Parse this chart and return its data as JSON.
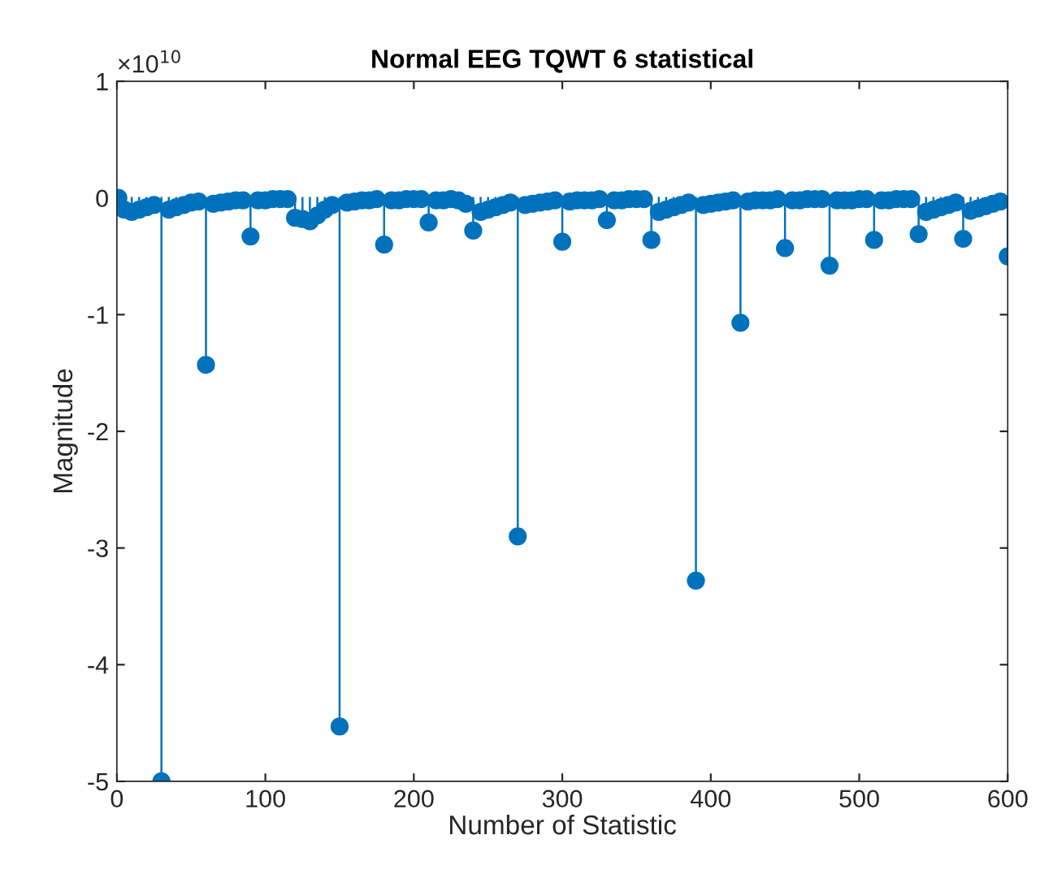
{
  "chart_data": {
    "type": "lollipop",
    "title": "Normal EEG TQWT 6 statistical",
    "xlabel": "Number of Statistic",
    "ylabel": "Magnitude",
    "annotations": [
      "×10$^{10}$"
    ],
    "x": [
      1,
      5,
      10,
      15,
      20,
      25,
      30,
      35,
      40,
      45,
      50,
      55,
      60,
      65,
      70,
      75,
      80,
      85,
      90,
      95,
      100,
      105,
      110,
      115,
      120,
      125,
      130,
      135,
      140,
      145,
      150,
      155,
      160,
      165,
      170,
      175,
      180,
      185,
      190,
      195,
      200,
      205,
      210,
      215,
      220,
      225,
      230,
      235,
      240,
      245,
      250,
      255,
      260,
      265,
      270,
      275,
      280,
      285,
      290,
      295,
      300,
      305,
      310,
      315,
      320,
      325,
      330,
      335,
      340,
      345,
      350,
      355,
      360,
      365,
      370,
      375,
      380,
      385,
      390,
      395,
      400,
      405,
      410,
      415,
      420,
      425,
      430,
      435,
      440,
      445,
      450,
      455,
      460,
      465,
      470,
      475,
      480,
      485,
      490,
      495,
      500,
      505,
      510,
      515,
      520,
      525,
      530,
      535,
      540,
      545,
      550,
      555,
      560,
      565,
      570,
      575,
      580,
      585,
      590,
      595,
      600
    ],
    "values": [
      0,
      -0.1,
      -0.12,
      -0.1,
      -0.08,
      -0.06,
      -5.0,
      -0.1,
      -0.08,
      -0.06,
      -0.04,
      -0.03,
      -1.43,
      -0.05,
      -0.04,
      -0.03,
      -0.02,
      -0.02,
      -0.33,
      -0.02,
      -0.02,
      -0.01,
      -0.01,
      -0.01,
      -0.17,
      -0.18,
      -0.2,
      -0.15,
      -0.1,
      -0.06,
      -4.53,
      -0.04,
      -0.03,
      -0.02,
      -0.02,
      -0.01,
      -0.4,
      -0.02,
      -0.02,
      -0.01,
      -0.01,
      -0.01,
      -0.21,
      -0.02,
      -0.02,
      -0.01,
      -0.02,
      -0.05,
      -0.28,
      -0.12,
      -0.1,
      -0.08,
      -0.06,
      -0.04,
      -2.9,
      -0.06,
      -0.05,
      -0.04,
      -0.03,
      -0.02,
      -0.375,
      -0.03,
      -0.02,
      -0.02,
      -0.02,
      -0.01,
      -0.19,
      -0.02,
      -0.02,
      -0.01,
      -0.01,
      -0.01,
      -0.36,
      -0.12,
      -0.1,
      -0.08,
      -0.06,
      -0.04,
      -3.28,
      -0.06,
      -0.05,
      -0.04,
      -0.03,
      -0.02,
      -1.07,
      -0.03,
      -0.02,
      -0.02,
      -0.02,
      -0.01,
      -0.43,
      -0.02,
      -0.02,
      -0.01,
      -0.01,
      -0.01,
      -0.58,
      -0.02,
      -0.02,
      -0.02,
      -0.01,
      -0.01,
      -0.36,
      -0.02,
      -0.02,
      -0.01,
      -0.01,
      -0.01,
      -0.31,
      -0.12,
      -0.1,
      -0.08,
      -0.06,
      -0.04,
      -0.35,
      -0.11,
      -0.09,
      -0.07,
      -0.05,
      -0.03,
      -0.5
    ],
    "color": "#0072bd",
    "marker": "circle",
    "xlim": [
      0,
      600
    ],
    "ylim": [
      -5,
      1
    ],
    "xticks": [
      0,
      100,
      200,
      300,
      400,
      500,
      600
    ],
    "yticks": [
      -5,
      -4,
      -3,
      -2,
      -1,
      0,
      1
    ],
    "grid": false
  }
}
